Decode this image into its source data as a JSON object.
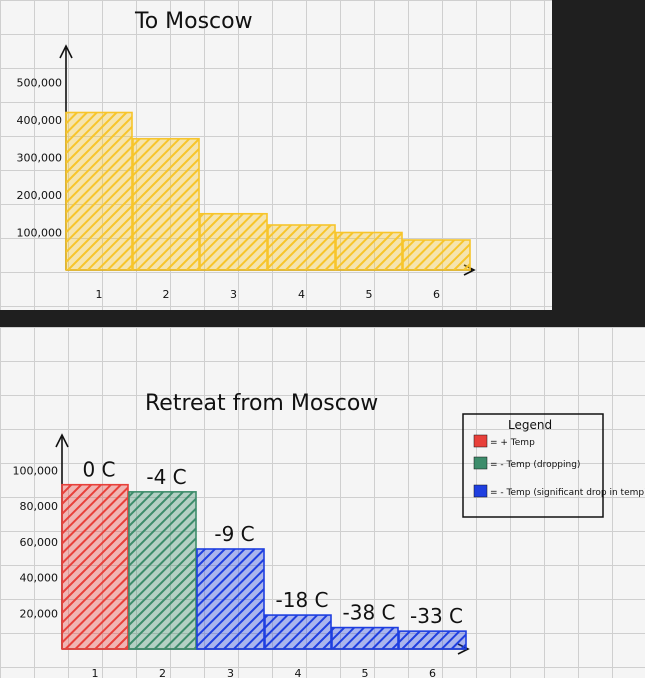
{
  "chart_data": [
    {
      "type": "bar",
      "title": "To Moscow",
      "categories": [
        "1",
        "2",
        "3",
        "4",
        "5",
        "6"
      ],
      "values": [
        420000,
        350000,
        150000,
        120000,
        100000,
        80000
      ],
      "y_tick_labels": [
        "500,000",
        "400,000",
        "300,000",
        "200,000",
        "100,000"
      ],
      "y_ticks": [
        500000,
        400000,
        300000,
        200000,
        100000
      ],
      "ylim": [
        0,
        560000
      ],
      "xlabel": "",
      "ylabel": "",
      "colors": [
        "#f7c52b"
      ]
    },
    {
      "type": "bar",
      "title": "Retreat from Moscow",
      "categories": [
        "1",
        "2",
        "3",
        "4",
        "5",
        "6"
      ],
      "values": [
        92000,
        88000,
        56000,
        19000,
        12000,
        10000
      ],
      "temperatures": [
        "0 C",
        "-4 C",
        "-9 C",
        "-18 C",
        "-38 C",
        "-33 C"
      ],
      "bar_colors": [
        "#e8403a",
        "#3d8c6b",
        "#1f3fe0",
        "#1f3fe0",
        "#1f3fe0",
        "#1f3fe0"
      ],
      "y_tick_labels": [
        "100,000",
        "80,000",
        "60,000",
        "40,000",
        "20,000"
      ],
      "y_ticks": [
        100000,
        80000,
        60000,
        40000,
        20000
      ],
      "ylim": [
        0,
        112000
      ],
      "xlabel": "",
      "ylabel": "",
      "legend": {
        "title": "Legend",
        "position": "top-right",
        "items": [
          {
            "label": "= + Temp",
            "color": "#e8403a"
          },
          {
            "label": "= - Temp (dropping)",
            "color": "#3d8c6b"
          },
          {
            "label": "= - Temp (significant drop in temp)",
            "color": "#1f3fe0"
          }
        ]
      }
    }
  ]
}
